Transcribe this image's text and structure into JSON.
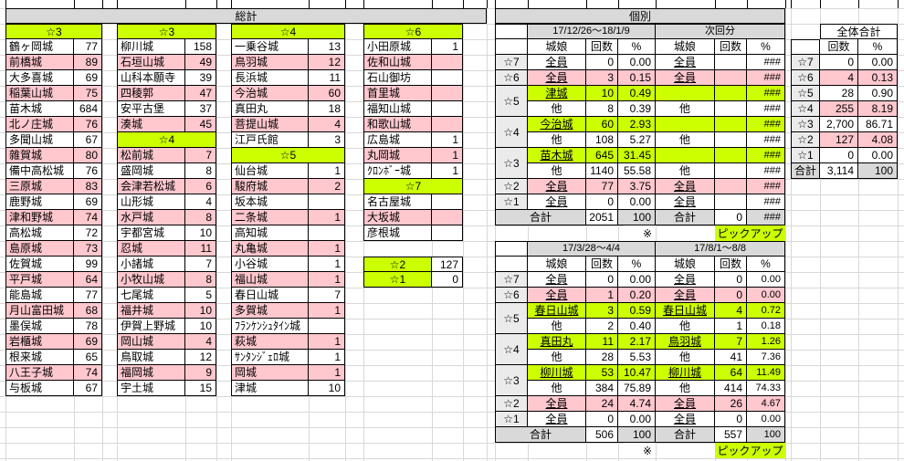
{
  "colors": {
    "pickup_green": "#ccff00",
    "stripe_pink": "#ffc7ce",
    "header_gray": "#d9d9d9",
    "label_gray": "#ebebeb",
    "gridline": "#d8d8d8"
  },
  "sections": {
    "grand_total_title": "総計",
    "individual_title": "個別",
    "overall_total_title": "全体合計"
  },
  "left_columns": [
    {
      "segments": [
        {
          "header": "☆3",
          "rows": [
            [
              "鶴ヶ岡城",
              "77"
            ],
            [
              "前橋城",
              "89"
            ],
            [
              "大多喜城",
              "69"
            ],
            [
              "稲葉山城",
              "75"
            ],
            [
              "苗木城",
              "684"
            ],
            [
              "北ノ庄城",
              "76"
            ],
            [
              "多聞山城",
              "67"
            ],
            [
              "雜賀城",
              "80"
            ],
            [
              "備中高松城",
              "76"
            ],
            [
              "三原城",
              "83"
            ],
            [
              "鹿野城",
              "69"
            ],
            [
              "津和野城",
              "74"
            ],
            [
              "高松城",
              "72"
            ],
            [
              "島原城",
              "73"
            ],
            [
              "佐賀城",
              "99"
            ],
            [
              "平戸城",
              "64"
            ],
            [
              "能島城",
              "77"
            ],
            [
              "月山富田城",
              "68"
            ],
            [
              "墨俣城",
              "78"
            ],
            [
              "岩櫃城",
              "69"
            ],
            [
              "根来城",
              "65"
            ],
            [
              "八王子城",
              "74"
            ],
            [
              "与板城",
              "67"
            ]
          ]
        }
      ]
    },
    {
      "segments": [
        {
          "header": "☆3",
          "rows": [
            [
              "柳川城",
              "158"
            ],
            [
              "石垣山城",
              "49"
            ],
            [
              "山科本願寺",
              "39"
            ],
            [
              "四稜郭",
              "47"
            ],
            [
              "安平古堡",
              "37"
            ],
            [
              "湊城",
              "45"
            ]
          ]
        },
        {
          "header": "☆4",
          "rows": [
            [
              "松前城",
              "7"
            ],
            [
              "盛岡城",
              "8"
            ],
            [
              "会津若松城",
              "6"
            ],
            [
              "山形城",
              "4"
            ],
            [
              "水戸城",
              "8"
            ],
            [
              "宇都宮城",
              "10"
            ],
            [
              "忍城",
              "11"
            ],
            [
              "小諸城",
              "7"
            ],
            [
              "小牧山城",
              "8"
            ],
            [
              "七尾城",
              "5"
            ],
            [
              "福井城",
              "10"
            ],
            [
              "伊賀上野城",
              "10"
            ],
            [
              "岡山城",
              "4"
            ],
            [
              "鳥取城",
              "12"
            ],
            [
              "福岡城",
              "9"
            ],
            [
              "宇土城",
              "15"
            ]
          ]
        }
      ]
    },
    {
      "segments": [
        {
          "header": "☆4",
          "rows": [
            [
              "一乗谷城",
              "13"
            ],
            [
              "鳥羽城",
              "12"
            ],
            [
              "長浜城",
              "11"
            ],
            [
              "今治城",
              "60"
            ],
            [
              "真田丸",
              "18"
            ],
            [
              "菩提山城",
              "4"
            ],
            [
              "江戸氏館",
              "3"
            ]
          ]
        },
        {
          "header": "☆5",
          "rows": [
            [
              "仙台城",
              "1"
            ],
            [
              "駿府城",
              "2"
            ],
            [
              "坂本城",
              ""
            ],
            [
              "二条城",
              "1"
            ],
            [
              "高知城",
              ""
            ],
            [
              "丸亀城",
              "1"
            ],
            [
              "小谷城",
              "1"
            ],
            [
              "福山城",
              "1"
            ],
            [
              "春日山城",
              "7"
            ],
            [
              "多賀城",
              "1"
            ],
            [
              "ﾌﾗﾝｹﾝｼｭﾀｲﾝ城",
              ""
            ],
            [
              "萩城",
              "1"
            ],
            [
              "ｻﾝﾀﾝｼﾞｪﾛ城",
              "1"
            ],
            [
              "岡城",
              "1"
            ],
            [
              "津城",
              "10"
            ]
          ]
        }
      ]
    },
    {
      "segments": [
        {
          "header": "☆6",
          "rows": [
            [
              "小田原城",
              "1"
            ],
            [
              "佐和山城",
              ""
            ],
            [
              "石山御坊",
              ""
            ],
            [
              "首里城",
              ""
            ],
            [
              "福知山城",
              ""
            ],
            [
              "和歌山城",
              ""
            ],
            [
              "広島城",
              "1"
            ],
            [
              "丸岡城",
              "1"
            ],
            [
              "ｸﾛﾝﾎﾞｰ城",
              "1"
            ]
          ]
        },
        {
          "header": "☆7",
          "rows": [
            [
              "名古屋城",
              ""
            ],
            [
              "大坂城",
              ""
            ],
            [
              "彦根城",
              ""
            ]
          ]
        }
      ],
      "footer": [
        [
          "☆2",
          "127"
        ],
        [
          "☆1",
          "0"
        ]
      ]
    }
  ],
  "middle_tables": [
    {
      "left_header": "17/12/26〜18/1/9",
      "right_header": "次回分",
      "col_headers": [
        "城娘",
        "回数",
        "%"
      ],
      "rows": [
        {
          "star": "☆7",
          "span": 1,
          "bg": "w",
          "l": [
            "全員",
            "0",
            "0.00"
          ],
          "r": [
            "全員",
            "",
            "###"
          ]
        },
        {
          "star": "☆6",
          "span": 1,
          "bg": "p",
          "l": [
            "全員",
            "3",
            "0.15"
          ],
          "r": [
            "全員",
            "",
            "###"
          ]
        },
        {
          "star": "☆5",
          "span": 2,
          "bg": "g",
          "l": [
            "津城",
            "10",
            "0.49"
          ],
          "r": [
            "",
            "",
            "###"
          ]
        },
        {
          "star": "",
          "span": 0,
          "bg": "w",
          "l": [
            "他",
            "8",
            "0.39"
          ],
          "r": [
            "他",
            "",
            "###"
          ]
        },
        {
          "star": "☆4",
          "span": 2,
          "bg": "g",
          "l": [
            "今治城",
            "60",
            "2.93"
          ],
          "r": [
            "",
            "",
            "###"
          ]
        },
        {
          "star": "",
          "span": 0,
          "bg": "w",
          "l": [
            "他",
            "108",
            "5.27"
          ],
          "r": [
            "他",
            "",
            "###"
          ]
        },
        {
          "star": "☆3",
          "span": 2,
          "bg": "g",
          "l": [
            "苗木城",
            "645",
            "31.45"
          ],
          "r": [
            "",
            "",
            "###"
          ]
        },
        {
          "star": "",
          "span": 0,
          "bg": "w",
          "l": [
            "他",
            "1140",
            "55.58"
          ],
          "r": [
            "他",
            "",
            "###"
          ]
        },
        {
          "star": "☆2",
          "span": 1,
          "bg": "p",
          "l": [
            "全員",
            "77",
            "3.75"
          ],
          "r": [
            "全員",
            "",
            "###"
          ]
        },
        {
          "star": "☆1",
          "span": 1,
          "bg": "w",
          "l": [
            "全員",
            "0",
            "0.00"
          ],
          "r": [
            "全員",
            "",
            "###"
          ]
        }
      ],
      "total": {
        "label": "合計",
        "l": [
          "2051",
          "100"
        ],
        "r": [
          "0",
          "###"
        ]
      },
      "note": {
        "mark": "※",
        "label": "ピックアップ"
      }
    },
    {
      "left_header": "17/3/28〜4/4",
      "right_header": "17/8/1〜8/8",
      "col_headers": [
        "城娘",
        "回数",
        "%"
      ],
      "rows": [
        {
          "star": "☆7",
          "span": 1,
          "bg": "w",
          "l": [
            "全員",
            "0",
            "0.00"
          ],
          "r": [
            "全員",
            "0",
            "0.00"
          ]
        },
        {
          "star": "☆6",
          "span": 1,
          "bg": "p",
          "l": [
            "全員",
            "1",
            "0.20"
          ],
          "r": [
            "全員",
            "0",
            "0.00"
          ]
        },
        {
          "star": "☆5",
          "span": 2,
          "bg": "g",
          "l": [
            "春日山城",
            "3",
            "0.59"
          ],
          "r": [
            "春日山城",
            "4",
            "0.72"
          ]
        },
        {
          "star": "",
          "span": 0,
          "bg": "w",
          "l": [
            "他",
            "2",
            "0.40"
          ],
          "r": [
            "他",
            "1",
            "0.18"
          ]
        },
        {
          "star": "☆4",
          "span": 2,
          "bg": "g",
          "l": [
            "真田丸",
            "11",
            "2.17"
          ],
          "r": [
            "鳥羽城",
            "7",
            "1.26"
          ]
        },
        {
          "star": "",
          "span": 0,
          "bg": "w",
          "l": [
            "他",
            "28",
            "5.53"
          ],
          "r": [
            "他",
            "41",
            "7.36"
          ]
        },
        {
          "star": "☆3",
          "span": 2,
          "bg": "g",
          "l": [
            "柳川城",
            "53",
            "10.47"
          ],
          "r": [
            "柳川城",
            "64",
            "11.49"
          ]
        },
        {
          "star": "",
          "span": 0,
          "bg": "w",
          "l": [
            "他",
            "384",
            "75.89"
          ],
          "r": [
            "他",
            "414",
            "74.33"
          ]
        },
        {
          "star": "☆2",
          "span": 1,
          "bg": "p",
          "l": [
            "全員",
            "24",
            "4.74"
          ],
          "r": [
            "全員",
            "26",
            "4.67"
          ]
        },
        {
          "star": "☆1",
          "span": 1,
          "bg": "w",
          "l": [
            "全員",
            "0",
            "0.00"
          ],
          "r": [
            "全員",
            "0",
            "0.00"
          ]
        }
      ],
      "total": {
        "label": "合計",
        "l": [
          "506",
          "100"
        ],
        "r": [
          "557",
          "100"
        ]
      },
      "note": {
        "mark": "※",
        "label": "ピックアップ"
      }
    }
  ],
  "right_table": {
    "col_headers": [
      "回数",
      "%"
    ],
    "rows": [
      [
        "☆7",
        "0",
        "0.00",
        "w"
      ],
      [
        "☆6",
        "4",
        "0.13",
        "p"
      ],
      [
        "☆5",
        "28",
        "0.90",
        "w"
      ],
      [
        "☆4",
        "255",
        "8.19",
        "p"
      ],
      [
        "☆3",
        "2,700",
        "86.71",
        "w"
      ],
      [
        "☆2",
        "127",
        "4.08",
        "p"
      ],
      [
        "☆1",
        "0",
        "0.00",
        "w"
      ]
    ],
    "total": [
      "合計",
      "3,114",
      "100"
    ]
  }
}
